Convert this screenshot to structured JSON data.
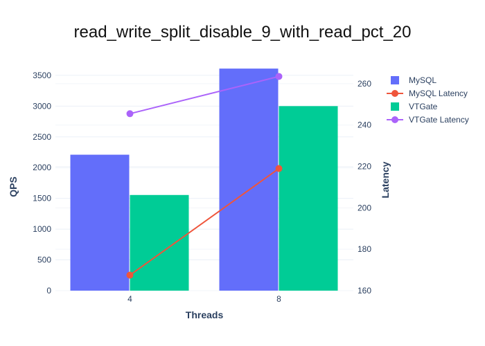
{
  "chart_data": {
    "type": "bar",
    "title": "read_write_split_disable_9_with_read_pct_20",
    "xlabel": "Threads",
    "ylabel": "QPS",
    "y2label": "Latency",
    "categories": [
      "4",
      "8"
    ],
    "ylim": [
      0,
      3600
    ],
    "y2lim": [
      160,
      267
    ],
    "y_ticks": [
      0,
      500,
      1000,
      1500,
      2000,
      2500,
      3000,
      3500
    ],
    "y2_ticks": [
      160,
      180,
      200,
      220,
      240,
      260
    ],
    "grid": true,
    "legend_position": "top-right",
    "series": [
      {
        "name": "MySQL",
        "kind": "bar",
        "axis": "y",
        "color": "#636efa",
        "values": [
          2210,
          3610
        ]
      },
      {
        "name": "MySQL Latency",
        "kind": "line",
        "axis": "y2",
        "color": "#ef553b",
        "values": [
          167.5,
          219
        ]
      },
      {
        "name": "VTGate",
        "kind": "bar",
        "axis": "y",
        "color": "#00cc96",
        "values": [
          1555,
          3000
        ]
      },
      {
        "name": "VTGate Latency",
        "kind": "line",
        "axis": "y2",
        "color": "#ab63fa",
        "values": [
          245.5,
          263.5
        ]
      }
    ]
  }
}
